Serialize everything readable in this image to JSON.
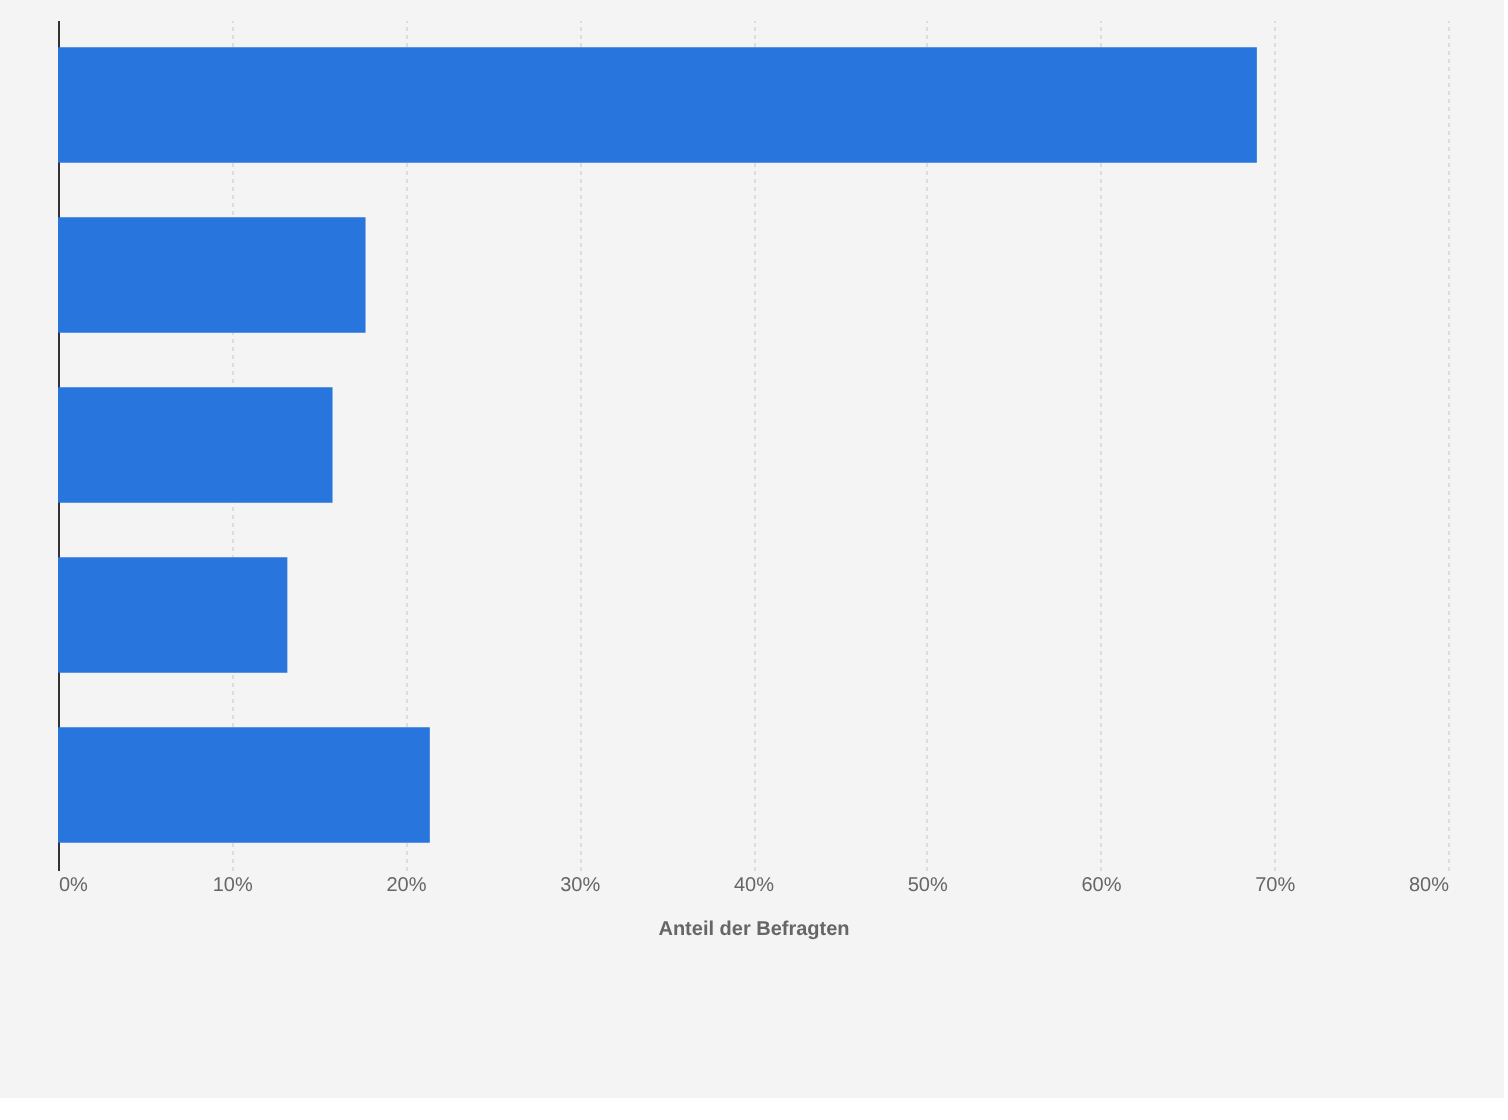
{
  "chart_data": {
    "type": "bar",
    "orientation": "horizontal",
    "xlabel": "Anteil der Befragten",
    "categories": [
      null,
      null,
      null,
      null,
      null
    ],
    "values": [
      69,
      17.7,
      15.8,
      13.2,
      21.4
    ],
    "color": "#2876dd",
    "xlim": [
      0,
      80
    ],
    "xticks": [
      {
        "value": 0,
        "label": "0%"
      },
      {
        "value": 10,
        "label": "10%"
      },
      {
        "value": 20,
        "label": "20%"
      },
      {
        "value": 30,
        "label": "30%"
      },
      {
        "value": 40,
        "label": "40%"
      },
      {
        "value": 50,
        "label": "50%"
      },
      {
        "value": 60,
        "label": "60%"
      },
      {
        "value": 70,
        "label": "70%"
      },
      {
        "value": 80,
        "label": "80%"
      }
    ],
    "grid": "x",
    "tick_labels": "x"
  }
}
